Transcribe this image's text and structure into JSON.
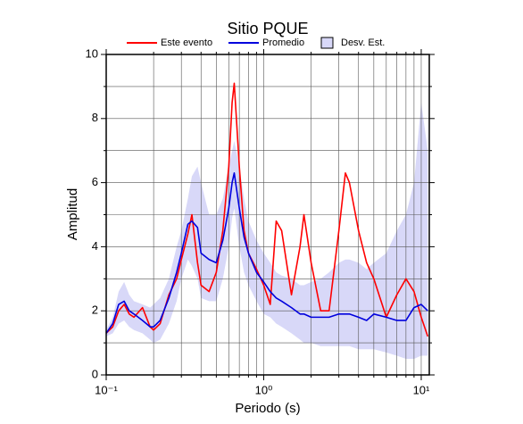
{
  "chart_data": {
    "type": "line",
    "title": "Sitio PQUE",
    "xlabel": "Periodo (s)",
    "ylabel": "Amplitud",
    "xscale": "log",
    "xlim": [
      0.1,
      11.25
    ],
    "ylim": [
      0,
      10
    ],
    "xticks": [
      {
        "value": 0.1,
        "label": "10⁻¹"
      },
      {
        "value": 1,
        "label": "10⁰"
      },
      {
        "value": 10,
        "label": "10¹"
      }
    ],
    "xminor_ticks": [
      0.2,
      0.3,
      0.4,
      0.5,
      0.6,
      0.7,
      0.8,
      0.9,
      2,
      3,
      4,
      5,
      6,
      7,
      8,
      9
    ],
    "yticks": [
      0,
      2,
      4,
      6,
      8,
      10
    ],
    "yminor_ticks": [
      1,
      3,
      5,
      7,
      9
    ],
    "grid": true,
    "legend": "top",
    "x": [
      0.1,
      0.11,
      0.12,
      0.13,
      0.14,
      0.15,
      0.17,
      0.19,
      0.2,
      0.22,
      0.25,
      0.28,
      0.3,
      0.33,
      0.35,
      0.38,
      0.4,
      0.45,
      0.5,
      0.55,
      0.6,
      0.63,
      0.65,
      0.7,
      0.75,
      0.8,
      0.9,
      1.0,
      1.1,
      1.2,
      1.3,
      1.5,
      1.7,
      1.8,
      2.0,
      2.3,
      2.6,
      3.0,
      3.3,
      3.5,
      4.0,
      4.5,
      5,
      6,
      7,
      8,
      9,
      10,
      11
    ],
    "series": [
      {
        "name": "Este evento",
        "color": "#ff0000",
        "values": [
          1.3,
          1.5,
          2.0,
          2.2,
          1.9,
          1.8,
          2.1,
          1.5,
          1.4,
          1.6,
          2.5,
          3.0,
          3.6,
          4.4,
          5.0,
          3.5,
          2.8,
          2.6,
          3.2,
          4.5,
          6.5,
          8.5,
          9.1,
          6.5,
          4.5,
          3.8,
          3.3,
          2.8,
          2.2,
          4.8,
          4.5,
          2.5,
          4.0,
          5.0,
          3.5,
          2.0,
          2.0,
          4.5,
          6.3,
          6.0,
          4.5,
          3.5,
          3.0,
          1.8,
          2.5,
          3.0,
          2.6,
          1.8,
          1.2
        ]
      },
      {
        "name": "Promedio",
        "color": "#0000dd",
        "values": [
          1.3,
          1.6,
          2.2,
          2.3,
          2.0,
          1.9,
          1.7,
          1.5,
          1.5,
          1.7,
          2.4,
          3.2,
          3.8,
          4.7,
          4.8,
          4.6,
          3.8,
          3.6,
          3.5,
          4.2,
          5.2,
          6.0,
          6.3,
          5.2,
          4.3,
          3.8,
          3.2,
          2.9,
          2.6,
          2.4,
          2.3,
          2.1,
          1.9,
          1.9,
          1.8,
          1.8,
          1.8,
          1.9,
          1.9,
          1.9,
          1.8,
          1.7,
          1.9,
          1.8,
          1.7,
          1.7,
          2.1,
          2.2,
          2.0
        ]
      },
      {
        "name": "Desv. Est.",
        "color": "#d8d8f8",
        "band": true,
        "upper": [
          1.4,
          1.8,
          2.6,
          2.9,
          2.5,
          2.3,
          2.2,
          2.1,
          2.2,
          2.4,
          3.0,
          4.0,
          4.5,
          5.5,
          6.2,
          6.5,
          6.0,
          5.0,
          5.0,
          5.5,
          6.5,
          7.0,
          7.3,
          6.5,
          5.5,
          4.8,
          4.2,
          3.8,
          3.5,
          3.2,
          3.1,
          3.0,
          2.8,
          2.8,
          2.9,
          3.0,
          3.2,
          3.5,
          3.6,
          3.6,
          3.5,
          3.3,
          3.5,
          3.8,
          4.5,
          5.0,
          6.0,
          8.5,
          7.0
        ],
        "lower": [
          1.2,
          1.3,
          1.6,
          1.7,
          1.5,
          1.4,
          1.3,
          1.1,
          1.0,
          1.1,
          1.6,
          2.3,
          3.0,
          3.6,
          3.4,
          3.0,
          2.4,
          2.3,
          2.3,
          3.0,
          4.0,
          4.9,
          5.2,
          4.0,
          3.2,
          2.8,
          2.3,
          1.9,
          1.8,
          1.6,
          1.5,
          1.3,
          1.1,
          1.0,
          1.0,
          0.9,
          0.9,
          0.9,
          0.9,
          0.9,
          0.8,
          0.8,
          0.8,
          0.7,
          0.6,
          0.5,
          0.5,
          0.6,
          0.6
        ]
      }
    ]
  }
}
